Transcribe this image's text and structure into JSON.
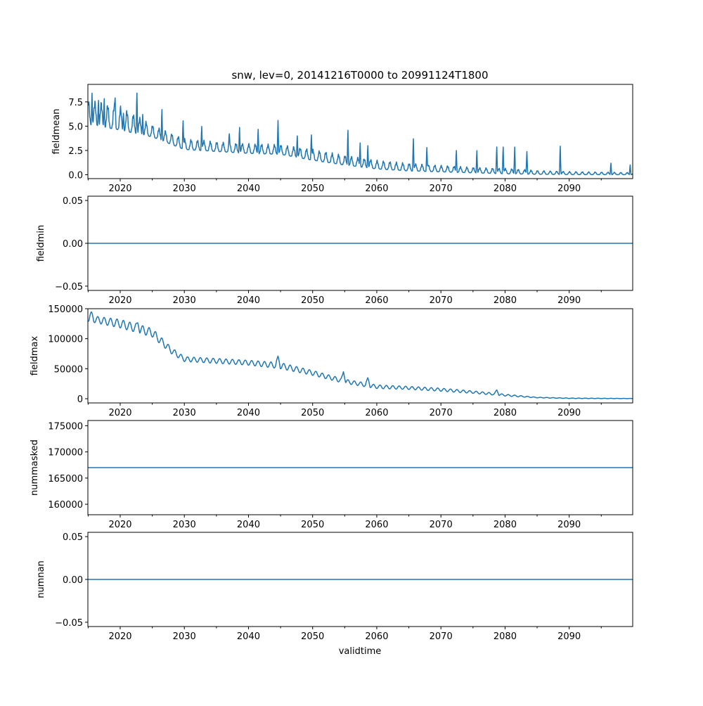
{
  "figure": {
    "title": "snw, lev=0, 20141216T0000 to 20991124T1800",
    "xlabel": "validtime",
    "line_color": "#1f77b4"
  },
  "chart_data": [
    {
      "type": "line",
      "name": "fieldmean",
      "ylabel": "fieldmean",
      "xlim": [
        2014.96,
        2099.9
      ],
      "ylim": [
        -0.4,
        9.3
      ],
      "xticks": [
        2020,
        2030,
        2040,
        2050,
        2060,
        2070,
        2080,
        2090
      ],
      "xtick_labels": [
        "2020",
        "2030",
        "2040",
        "2050",
        "2060",
        "2070",
        "2080",
        "2090"
      ],
      "yticks": [
        0.0,
        2.5,
        5.0,
        7.5
      ],
      "ytick_labels": [
        "0.0",
        "2.5",
        "5.0",
        "7.5"
      ],
      "envelope": {
        "years": [
          2015,
          2020,
          2025,
          2030,
          2035,
          2040,
          2045,
          2050,
          2055,
          2060,
          2065,
          2070,
          2075,
          2080,
          2085,
          2090,
          2095,
          2100
        ],
        "min": [
          5.2,
          4.6,
          3.9,
          2.6,
          2.4,
          2.2,
          2.1,
          1.5,
          1.0,
          0.6,
          0.4,
          0.3,
          0.2,
          0.1,
          0.05,
          0.02,
          0.01,
          0.0
        ],
        "max": [
          7.5,
          6.8,
          5.0,
          3.6,
          3.3,
          3.1,
          3.0,
          2.5,
          1.9,
          1.4,
          1.1,
          0.9,
          0.7,
          0.6,
          0.4,
          0.3,
          0.25,
          0.2
        ]
      },
      "spikes": [
        [
          2015.6,
          8.7
        ],
        [
          2016.6,
          7.9
        ],
        [
          2017.5,
          8.1
        ],
        [
          2019.2,
          8.1
        ],
        [
          2020.5,
          6.5
        ],
        [
          2022.6,
          8.8
        ],
        [
          2023.5,
          6.4
        ],
        [
          2026.5,
          7.0
        ],
        [
          2029.8,
          5.8
        ],
        [
          2032.7,
          5.2
        ],
        [
          2037.0,
          4.3
        ],
        [
          2038.6,
          5.1
        ],
        [
          2041.5,
          4.9
        ],
        [
          2044.6,
          5.9
        ],
        [
          2047.6,
          4.2
        ],
        [
          2049.8,
          4.3
        ],
        [
          2055.5,
          4.9
        ],
        [
          2057.4,
          3.5
        ],
        [
          2058.6,
          3.2
        ],
        [
          2065.7,
          4.0
        ],
        [
          2067.8,
          3.0
        ],
        [
          2072.4,
          2.7
        ],
        [
          2075.6,
          2.7
        ],
        [
          2078.7,
          3.1
        ],
        [
          2079.7,
          3.1
        ],
        [
          2081.5,
          3.1
        ],
        [
          2083.4,
          2.6
        ],
        [
          2088.6,
          3.2
        ],
        [
          2096.5,
          1.3
        ],
        [
          2099.5,
          1.1
        ]
      ]
    },
    {
      "type": "line",
      "name": "fieldmin",
      "ylabel": "fieldmin",
      "xlim": [
        2014.96,
        2099.9
      ],
      "ylim": [
        -0.055,
        0.055
      ],
      "xticks": [
        2020,
        2030,
        2040,
        2050,
        2060,
        2070,
        2080,
        2090
      ],
      "xtick_labels": [
        "2020",
        "2030",
        "2040",
        "2050",
        "2060",
        "2070",
        "2080",
        "2090"
      ],
      "yticks": [
        -0.05,
        0.0,
        0.05
      ],
      "ytick_labels": [
        "−0.05",
        "0.00",
        "0.05"
      ],
      "constant": 0.0
    },
    {
      "type": "line",
      "name": "fieldmax",
      "ylabel": "fieldmax",
      "xlim": [
        2014.96,
        2099.9
      ],
      "ylim": [
        -7000,
        150000
      ],
      "xticks": [
        2020,
        2030,
        2040,
        2050,
        2060,
        2070,
        2080,
        2090
      ],
      "xtick_labels": [
        "2020",
        "2030",
        "2040",
        "2050",
        "2060",
        "2070",
        "2080",
        "2090"
      ],
      "yticks": [
        0,
        50000,
        100000,
        150000
      ],
      "ytick_labels": [
        "0",
        "50000",
        "100000",
        "150000"
      ],
      "envelope": {
        "years": [
          2015,
          2020,
          2025,
          2028,
          2030,
          2035,
          2040,
          2045,
          2050,
          2055,
          2060,
          2065,
          2070,
          2075,
          2080,
          2085,
          2090,
          2095,
          2100
        ],
        "mid": [
          134000,
          125000,
          110000,
          80000,
          66000,
          63000,
          60000,
          55000,
          43000,
          29000,
          20000,
          18000,
          15000,
          11000,
          6000,
          2000,
          800,
          500,
          300
        ],
        "amp": [
          5000,
          7000,
          7000,
          5000,
          4000,
          4000,
          4000,
          5000,
          4000,
          3500,
          3000,
          2500,
          2500,
          2000,
          1500,
          500,
          400,
          300,
          200
        ]
      },
      "spikes": [
        [
          2015.5,
          145000
        ],
        [
          2022.7,
          127000
        ],
        [
          2044.6,
          71000
        ],
        [
          2054.8,
          45000
        ],
        [
          2058.6,
          35000
        ],
        [
          2078.7,
          15000
        ]
      ]
    },
    {
      "type": "line",
      "name": "nummasked",
      "ylabel": "nummasked",
      "xlim": [
        2014.96,
        2099.9
      ],
      "ylim": [
        158000,
        176000
      ],
      "xticks": [
        2020,
        2030,
        2040,
        2050,
        2060,
        2070,
        2080,
        2090
      ],
      "xtick_labels": [
        "2020",
        "2030",
        "2040",
        "2050",
        "2060",
        "2070",
        "2080",
        "2090"
      ],
      "yticks": [
        160000,
        165000,
        170000,
        175000
      ],
      "ytick_labels": [
        "160000",
        "165000",
        "170000",
        "175000"
      ],
      "constant": 167000
    },
    {
      "type": "line",
      "name": "numnan",
      "ylabel": "numnan",
      "xlim": [
        2014.96,
        2099.9
      ],
      "ylim": [
        -0.055,
        0.055
      ],
      "xticks": [
        2020,
        2030,
        2040,
        2050,
        2060,
        2070,
        2080,
        2090
      ],
      "xtick_labels": [
        "2020",
        "2030",
        "2040",
        "2050",
        "2060",
        "2070",
        "2080",
        "2090"
      ],
      "yticks": [
        -0.05,
        0.0,
        0.05
      ],
      "ytick_labels": [
        "−0.05",
        "0.00",
        "0.05"
      ],
      "constant": 0.0
    }
  ]
}
